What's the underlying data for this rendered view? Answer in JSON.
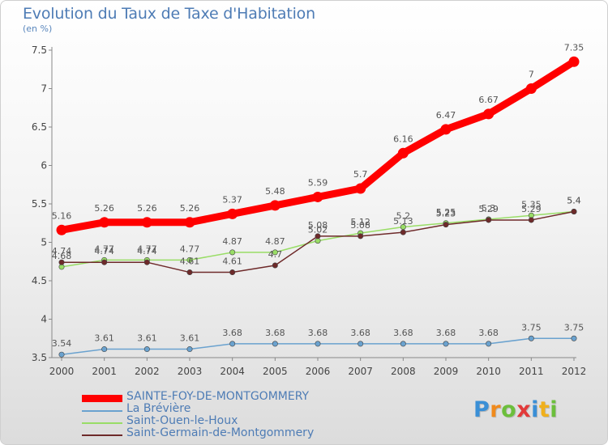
{
  "chart_data": {
    "type": "line",
    "title": "Evolution du Taux de Taxe d'Habitation",
    "subtitle": "(en %)",
    "ylim": [
      3.5,
      7.5
    ],
    "yticks": [
      "3.5",
      "4",
      "4.5",
      "5",
      "5.5",
      "6",
      "6.5",
      "7",
      "7.5"
    ],
    "x": [
      "2000",
      "2001",
      "2002",
      "2003",
      "2004",
      "2005",
      "2006",
      "2007",
      "2008",
      "2009",
      "2010",
      "2011",
      "2012"
    ],
    "grid": false,
    "legend_position": "bottom-left",
    "series": [
      {
        "name": "SAINTE-FOY-DE-MONTGOMMERY",
        "color": "#ff0000",
        "values": [
          5.16,
          5.26,
          5.26,
          5.26,
          5.37,
          5.48,
          5.59,
          5.7,
          6.16,
          6.47,
          6.67,
          7,
          7.35
        ],
        "labels": [
          "5.16",
          "5.26",
          "5.26",
          "5.26",
          "5.37",
          "5.48",
          "5.59",
          "5.7",
          "6.16",
          "6.47",
          "6.67",
          "7",
          "7.35"
        ]
      },
      {
        "name": "La Brévière",
        "color": "#6aa2cf",
        "values": [
          3.54,
          3.61,
          3.61,
          3.61,
          3.68,
          3.68,
          3.68,
          3.68,
          3.68,
          3.68,
          3.68,
          3.75,
          3.75
        ],
        "labels": [
          "3.54",
          "3.61",
          "3.61",
          "3.61",
          "3.68",
          "3.68",
          "3.68",
          "3.68",
          "3.68",
          "3.68",
          "3.68",
          "3.75",
          "3.75"
        ]
      },
      {
        "name": "Saint-Ouen-le-Houx",
        "color": "#99dd66",
        "values": [
          4.68,
          4.77,
          4.77,
          4.77,
          4.87,
          4.87,
          5.02,
          5.12,
          5.2,
          5.25,
          5.3,
          5.35,
          5.4
        ],
        "labels": [
          "4.68",
          "4.77",
          "4.77",
          "4.77",
          "4.87",
          "4.87",
          "5.02",
          "5.12",
          "5.2",
          "5.25",
          "5.3",
          "5.35",
          "5.4"
        ]
      },
      {
        "name": "Saint-Germain-de-Montgommery",
        "color": "#6e2a2a",
        "values": [
          4.74,
          4.74,
          4.74,
          4.61,
          4.61,
          4.7,
          5.08,
          5.08,
          5.13,
          5.23,
          5.29,
          5.29,
          5.4
        ],
        "labels": [
          "4.74",
          "4.74",
          "4.74",
          "4.61",
          "4.61",
          "4.7",
          "5.08",
          "5.08",
          "5.13",
          "5.23",
          "5.29",
          "5.29",
          "5.4"
        ]
      }
    ]
  },
  "logo": {
    "letters": [
      "P",
      "r",
      "o",
      "x",
      "i",
      "t",
      "i"
    ],
    "colors": [
      "#3a8fd6",
      "#f08a1c",
      "#6cbf3c",
      "#e23a3a",
      "#3a8fd6",
      "#f0b01c",
      "#6cbf3c"
    ]
  }
}
